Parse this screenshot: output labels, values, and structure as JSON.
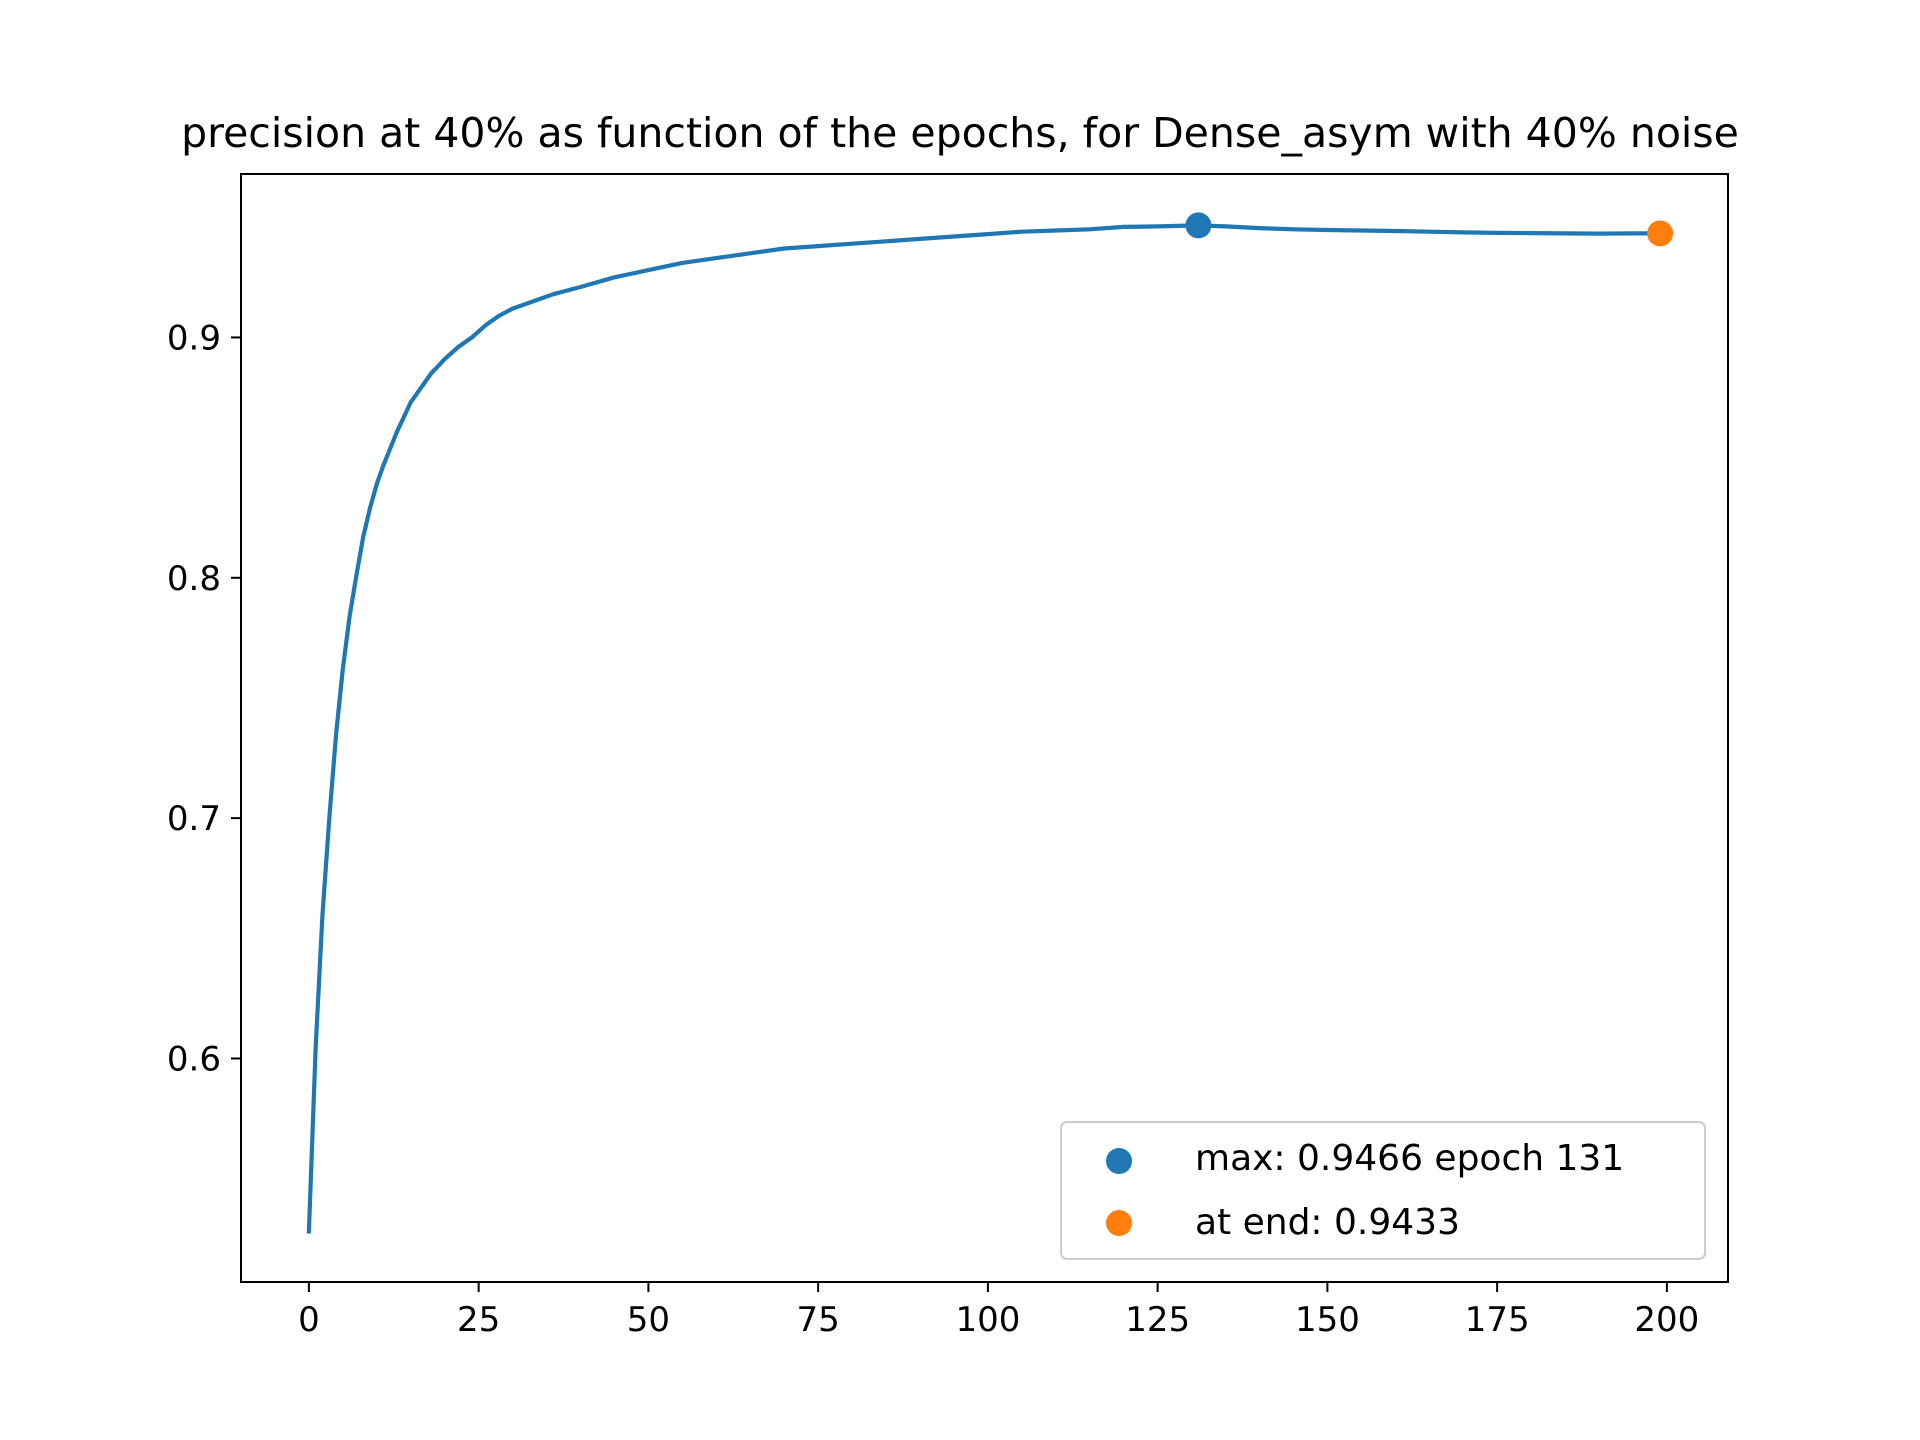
{
  "chart_data": {
    "type": "line",
    "title": "precision at 40% as function of the epochs, for Dense_asym with 40% noise",
    "xlabel": "",
    "ylabel": "",
    "xlim": [
      -10,
      209
    ],
    "ylim": [
      0.507,
      0.968
    ],
    "xticks": [
      0,
      25,
      50,
      75,
      100,
      125,
      150,
      175,
      200
    ],
    "yticks": [
      0.6,
      0.7,
      0.8,
      0.9
    ],
    "ytick_labels": [
      "0.6",
      "0.7",
      "0.8",
      "0.9"
    ],
    "grid": false,
    "legend_position": "lower-right",
    "series": [
      {
        "color": "#1f77b4",
        "x": [
          0,
          1,
          2,
          3,
          4,
          5,
          6,
          7,
          8,
          9,
          10,
          11,
          12,
          13,
          14,
          15,
          16,
          17,
          18,
          19,
          20,
          22,
          24,
          26,
          28,
          30,
          33,
          36,
          40,
          45,
          50,
          55,
          60,
          65,
          70,
          75,
          80,
          85,
          90,
          95,
          100,
          105,
          110,
          115,
          120,
          125,
          131,
          135,
          140,
          145,
          150,
          155,
          160,
          165,
          170,
          175,
          180,
          185,
          190,
          195,
          199
        ],
        "y": [
          0.528,
          0.605,
          0.66,
          0.7,
          0.735,
          0.762,
          0.784,
          0.801,
          0.817,
          0.829,
          0.839,
          0.847,
          0.854,
          0.861,
          0.867,
          0.873,
          0.877,
          0.881,
          0.885,
          0.888,
          0.891,
          0.896,
          0.9,
          0.905,
          0.909,
          0.912,
          0.915,
          0.918,
          0.921,
          0.925,
          0.928,
          0.931,
          0.933,
          0.935,
          0.937,
          0.938,
          0.939,
          0.94,
          0.941,
          0.942,
          0.943,
          0.944,
          0.9445,
          0.945,
          0.946,
          0.9462,
          0.9466,
          0.9462,
          0.9455,
          0.945,
          0.9447,
          0.9445,
          0.9443,
          0.944,
          0.9437,
          0.9435,
          0.9434,
          0.9433,
          0.9432,
          0.9433,
          0.9433
        ]
      }
    ],
    "points": [
      {
        "label": "max: 0.9466 epoch 131",
        "x": 131,
        "y": 0.9466,
        "color": "#1f77b4"
      },
      {
        "label": "at end: 0.9433",
        "x": 199,
        "y": 0.9433,
        "color": "#ff7f0e"
      }
    ]
  }
}
